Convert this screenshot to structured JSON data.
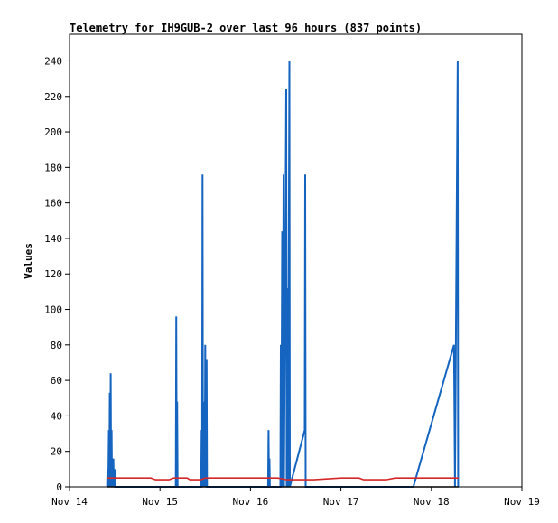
{
  "chart_data": {
    "type": "line",
    "title": "Telemetry for IH9GUB-2 over last 96 hours (837 points)",
    "xlabel": "",
    "ylabel": "Values",
    "xlim": [
      "Nov 14",
      "Nov 19"
    ],
    "ylim": [
      0,
      255
    ],
    "x_ticks": [
      "Nov 14",
      "Nov 15",
      "Nov 16",
      "Nov 17",
      "Nov 18",
      "Nov 19"
    ],
    "y_ticks": [
      0,
      20,
      40,
      60,
      80,
      100,
      120,
      140,
      160,
      180,
      200,
      220,
      240
    ],
    "grid": false,
    "legend": "none",
    "series": [
      {
        "color": "#1565c0",
        "x_unit": "days since Nov 14",
        "points": [
          [
            0.415,
            0
          ],
          [
            0.42,
            10
          ],
          [
            0.428,
            0
          ],
          [
            0.435,
            32
          ],
          [
            0.44,
            0
          ],
          [
            0.445,
            53
          ],
          [
            0.45,
            0
          ],
          [
            0.455,
            64
          ],
          [
            0.46,
            0
          ],
          [
            0.465,
            32
          ],
          [
            0.47,
            0
          ],
          [
            0.485,
            16
          ],
          [
            0.49,
            0
          ],
          [
            0.5,
            10
          ],
          [
            0.505,
            0
          ],
          [
            1.175,
            0
          ],
          [
            1.18,
            96
          ],
          [
            1.185,
            0
          ],
          [
            1.19,
            48
          ],
          [
            1.195,
            0
          ],
          [
            1.455,
            0
          ],
          [
            1.46,
            32
          ],
          [
            1.465,
            0
          ],
          [
            1.47,
            176
          ],
          [
            1.475,
            0
          ],
          [
            1.49,
            48
          ],
          [
            1.495,
            0
          ],
          [
            1.5,
            80
          ],
          [
            1.505,
            0
          ],
          [
            1.515,
            72
          ],
          [
            1.52,
            0
          ],
          [
            2.195,
            0
          ],
          [
            2.2,
            32
          ],
          [
            2.205,
            0
          ],
          [
            2.21,
            16
          ],
          [
            2.215,
            0
          ],
          [
            2.33,
            0
          ],
          [
            2.335,
            80
          ],
          [
            2.34,
            0
          ],
          [
            2.35,
            144
          ],
          [
            2.355,
            0
          ],
          [
            2.365,
            176
          ],
          [
            2.37,
            0
          ],
          [
            2.395,
            224
          ],
          [
            2.4,
            0
          ],
          [
            2.41,
            112
          ],
          [
            2.415,
            0
          ],
          [
            2.43,
            240
          ],
          [
            2.435,
            0
          ],
          [
            2.6,
            32
          ],
          [
            2.605,
            176
          ],
          [
            2.61,
            0
          ],
          [
            3.8,
            0
          ],
          [
            4.25,
            80
          ],
          [
            4.255,
            40
          ],
          [
            4.26,
            0
          ],
          [
            4.29,
            240
          ],
          [
            4.295,
            0
          ]
        ]
      },
      {
        "color": "#d62728",
        "x_unit": "days since Nov 14",
        "points": [
          [
            0.41,
            5
          ],
          [
            0.9,
            5
          ],
          [
            0.95,
            4
          ],
          [
            1.1,
            4
          ],
          [
            1.15,
            5
          ],
          [
            1.3,
            5
          ],
          [
            1.33,
            4
          ],
          [
            1.45,
            4
          ],
          [
            1.5,
            5
          ],
          [
            2.0,
            5
          ],
          [
            2.3,
            5
          ],
          [
            2.4,
            4
          ],
          [
            2.7,
            4
          ],
          [
            3.0,
            5
          ],
          [
            3.2,
            5
          ],
          [
            3.25,
            4
          ],
          [
            3.5,
            4
          ],
          [
            3.6,
            5
          ],
          [
            4.0,
            5
          ],
          [
            4.3,
            5
          ]
        ]
      },
      {
        "color": "#000000",
        "x_unit": "days since Nov 14",
        "points": [
          [
            0.41,
            0
          ],
          [
            4.3,
            0
          ]
        ]
      }
    ]
  }
}
